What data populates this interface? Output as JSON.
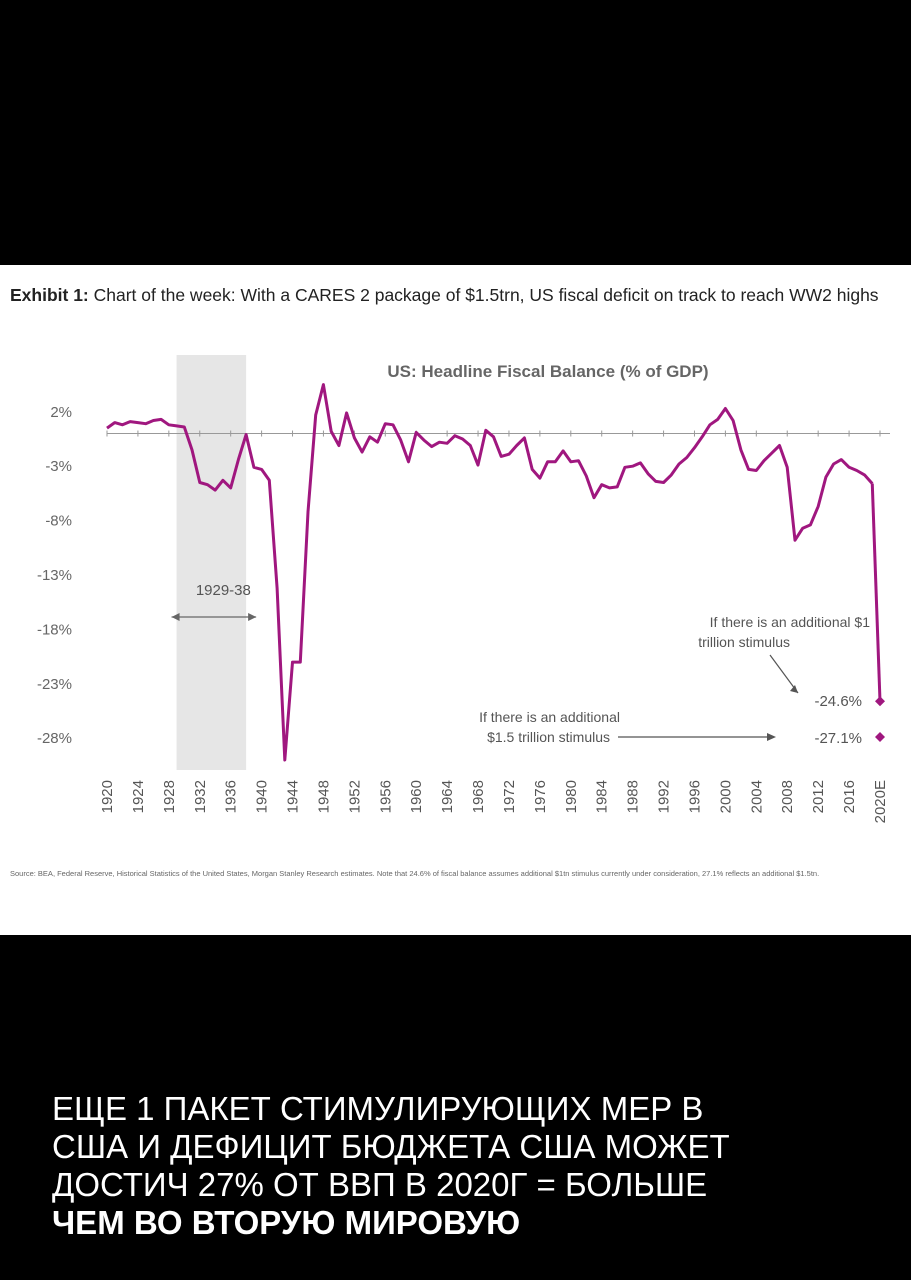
{
  "exhibit": {
    "label": "Exhibit 1:",
    "text": " Chart of the week: With a CARES 2 package of $1.5trn, US fiscal deficit on track to reach WW2 highs"
  },
  "source": "Source: BEA, Federal Reserve, Historical Statistics of the United States, Morgan Stanley Research estimates. Note that 24.6% of fiscal balance assumes additional $1tn stimulus currently under consideration, 27.1% reflects an additional $1.5tn.",
  "caption": {
    "line1": "ЕЩЕ 1 ПАКЕТ СТИМУЛИРУЮЩИХ МЕР В",
    "line2": "США И ДЕФИЦИТ БЮДЖЕТА США МОЖЕТ",
    "line3": "ДОСТИЧ 27% ОТ ВВП В 2020Г = БОЛЬШЕ",
    "line4": "ЧЕМ ВО ВТОРУЮ МИРОВУЮ"
  },
  "colors": {
    "series": "#a0177f",
    "shade": "#e6e6e6",
    "text": "#555555"
  },
  "chart_data": {
    "type": "line",
    "title": "US: Headline Fiscal Balance (% of GDP)",
    "ylim": [
      -30,
      4
    ],
    "yticks": [
      "2%",
      "-3%",
      "-8%",
      "-13%",
      "-18%",
      "-23%",
      "-28%"
    ],
    "ytick_values": [
      2,
      -3,
      -8,
      -13,
      -18,
      -23,
      -28
    ],
    "xlim": [
      1920,
      2020
    ],
    "xticks": [
      "1920",
      "1924",
      "1928",
      "1932",
      "1936",
      "1940",
      "1944",
      "1948",
      "1952",
      "1956",
      "1960",
      "1964",
      "1968",
      "1972",
      "1976",
      "1980",
      "1984",
      "1988",
      "1992",
      "1996",
      "2000",
      "2004",
      "2008",
      "2012",
      "2016",
      "2020E"
    ],
    "xtick_values": [
      1920,
      1924,
      1928,
      1932,
      1936,
      1940,
      1944,
      1948,
      1952,
      1956,
      1960,
      1964,
      1968,
      1972,
      1976,
      1980,
      1984,
      1988,
      1992,
      1996,
      2000,
      2004,
      2008,
      2012,
      2016,
      2020
    ],
    "shaded_period": {
      "from": 1929,
      "to": 1938,
      "label": "1929-38"
    },
    "zero_line": 0,
    "series": [
      {
        "x": [
          1920,
          1921,
          1922,
          1923,
          1924,
          1925,
          1926,
          1927,
          1928,
          1929,
          1930,
          1931,
          1932,
          1933,
          1934,
          1935,
          1936,
          1937,
          1938,
          1939,
          1940,
          1941,
          1942,
          1943,
          1944,
          1945,
          1946,
          1947,
          1948,
          1949,
          1950,
          1951,
          1952,
          1953,
          1954,
          1955,
          1956,
          1957,
          1958,
          1959,
          1960,
          1961,
          1962,
          1963,
          1964,
          1965,
          1966,
          1967,
          1968,
          1969,
          1970,
          1971,
          1972,
          1973,
          1974,
          1975,
          1976,
          1977,
          1978,
          1979,
          1980,
          1981,
          1982,
          1983,
          1984,
          1985,
          1986,
          1987,
          1988,
          1989,
          1990,
          1991,
          1992,
          1993,
          1994,
          1995,
          1996,
          1997,
          1998,
          1999,
          2000,
          2001,
          2002,
          2003,
          2004,
          2005,
          2006,
          2007,
          2008,
          2009,
          2010,
          2011,
          2012,
          2013,
          2014,
          2015,
          2016,
          2017,
          2018,
          2019
        ],
        "y": [
          0.5,
          1.0,
          0.8,
          1.1,
          1.0,
          0.9,
          1.2,
          1.3,
          0.8,
          0.7,
          0.6,
          -1.5,
          -4.5,
          -4.7,
          -5.2,
          -4.3,
          -5.0,
          -2.4,
          -0.1,
          -3.1,
          -3.3,
          -4.3,
          -14.2,
          -30.0,
          -21.0,
          -21.0,
          -7.2,
          1.7,
          4.5,
          0.2,
          -1.1,
          1.9,
          -0.4,
          -1.7,
          -0.3,
          -0.8,
          0.9,
          0.8,
          -0.6,
          -2.6,
          0.1,
          -0.6,
          -1.2,
          -0.8,
          -0.9,
          -0.2,
          -0.5,
          -1.1,
          -2.9,
          0.3,
          -0.3,
          -2.1,
          -1.9,
          -1.1,
          -0.4,
          -3.3,
          -4.1,
          -2.6,
          -2.6,
          -1.6,
          -2.6,
          -2.5,
          -3.9,
          -5.9,
          -4.7,
          -5.0,
          -4.9,
          -3.1,
          -3.0,
          -2.7,
          -3.7,
          -4.4,
          -4.5,
          -3.8,
          -2.8,
          -2.2,
          -1.3,
          -0.3,
          0.8,
          1.3,
          2.3,
          1.2,
          -1.5,
          -3.3,
          -3.4,
          -2.5,
          -1.8,
          -1.1,
          -3.1,
          -9.8,
          -8.7,
          -8.4,
          -6.7,
          -4.0,
          -2.8,
          -2.4,
          -3.1,
          -3.4,
          -3.8,
          -4.6
        ]
      }
    ],
    "annotations": [
      {
        "text_line1": "If there is an additional $1",
        "text_line2": "trillion stimulus",
        "value_label": "-24.6%",
        "x": 2020,
        "y": -24.6
      },
      {
        "text_line1": "If there is an additional",
        "text_line2": "$1.5 trillion stimulus",
        "value_label": "-27.1%",
        "x": 2020,
        "y": -27.1
      }
    ]
  }
}
